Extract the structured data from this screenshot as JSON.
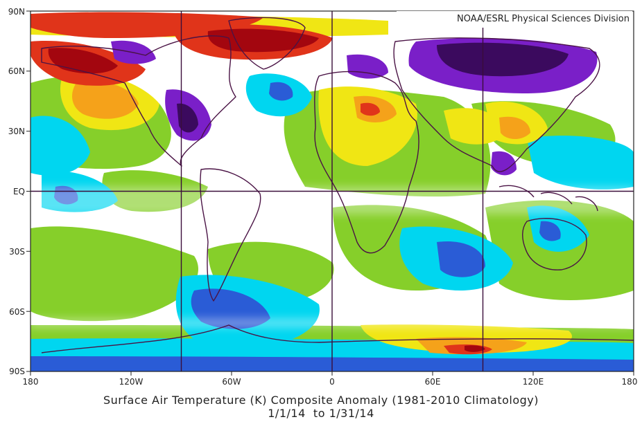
{
  "credit": "NOAA/ESRL Physical Sciences Division",
  "caption": {
    "title": "Surface Air Temperature (K) Composite Anomaly (1981-2010 Climatology)",
    "date_range": "1/1/14  to 1/31/14"
  },
  "axes": {
    "x_ticks": [
      "180",
      "120W",
      "60W",
      "0",
      "60E",
      "120E",
      "180"
    ],
    "y_ticks": [
      "90N",
      "60N",
      "30N",
      "EQ",
      "30S",
      "60S",
      "90S"
    ]
  },
  "palette": {
    "very_cold": "#3b0a5e",
    "purple": "#7a1fc8",
    "blue": "#2a5cd6",
    "light_blue": "#3fa0f0",
    "cyan": "#00d6f0",
    "neutral": "#ffffff",
    "green": "#86cf2a",
    "yellow": "#f0e614",
    "orange": "#f5a21a",
    "red": "#e0341a",
    "dark_red": "#a3060f",
    "coastline": "#4a1345",
    "grid": "#3a0d3a"
  }
}
